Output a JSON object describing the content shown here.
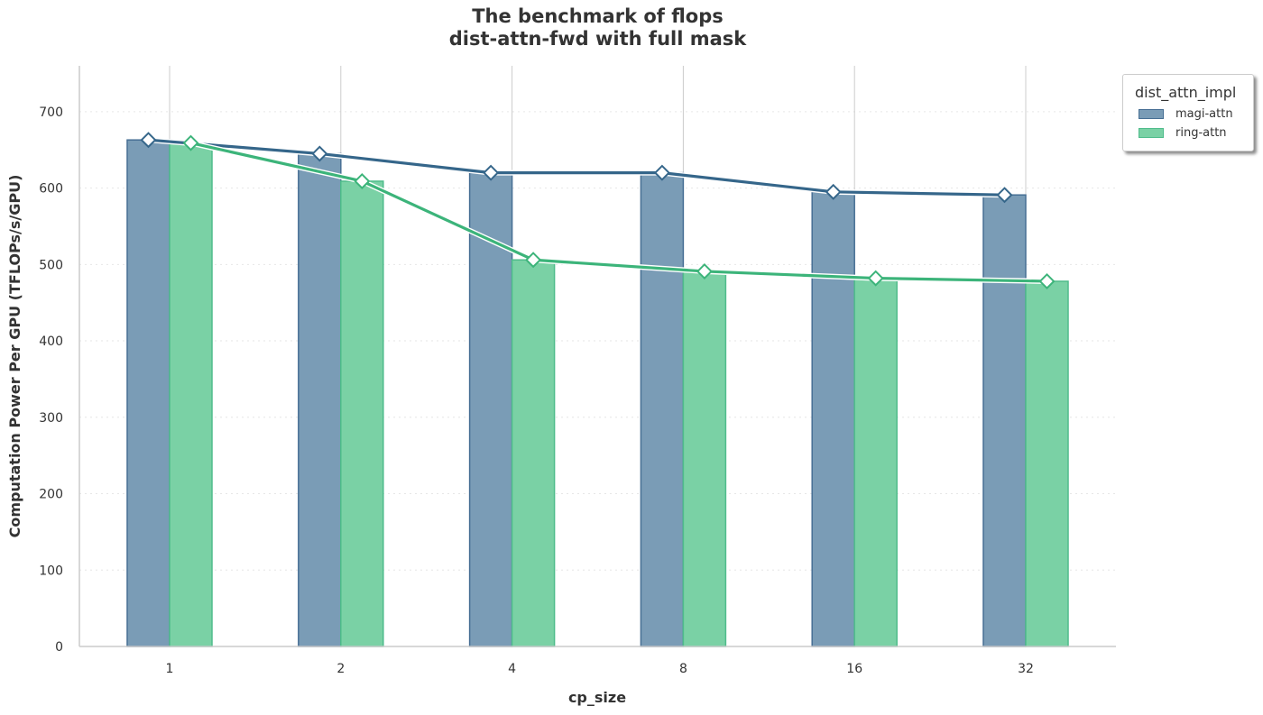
{
  "chart_data": {
    "type": "bar",
    "title": [
      "The benchmark of flops",
      "dist-attn-fwd with full mask"
    ],
    "xlabel": "cp_size",
    "ylabel": "Computation Power Per GPU (TFLOPs/s/GPU)",
    "categories": [
      "1",
      "2",
      "4",
      "8",
      "16",
      "32"
    ],
    "ylim": [
      0,
      760
    ],
    "yticks": [
      0,
      100,
      200,
      300,
      400,
      500,
      600,
      700
    ],
    "grid": {
      "x": "solid",
      "y": "dotted"
    },
    "legend": {
      "title": "dist_attn_impl",
      "position": "upper-right-outside"
    },
    "series": [
      {
        "name": "magi-attn",
        "values": [
          663,
          645,
          620,
          620,
          595,
          591
        ],
        "bar_color": "#7a9cb6",
        "edge_color": "#476f94",
        "line_color": "#35668a"
      },
      {
        "name": "ring-attn",
        "values": [
          659,
          609,
          506,
          491,
          482,
          478
        ],
        "bar_color": "#7ad1a5",
        "edge_color": "#4fbc8b",
        "line_color": "#3cb47a"
      }
    ],
    "overlay": {
      "type": "line",
      "marker": "diamond",
      "note_series": "same values as bars"
    }
  }
}
